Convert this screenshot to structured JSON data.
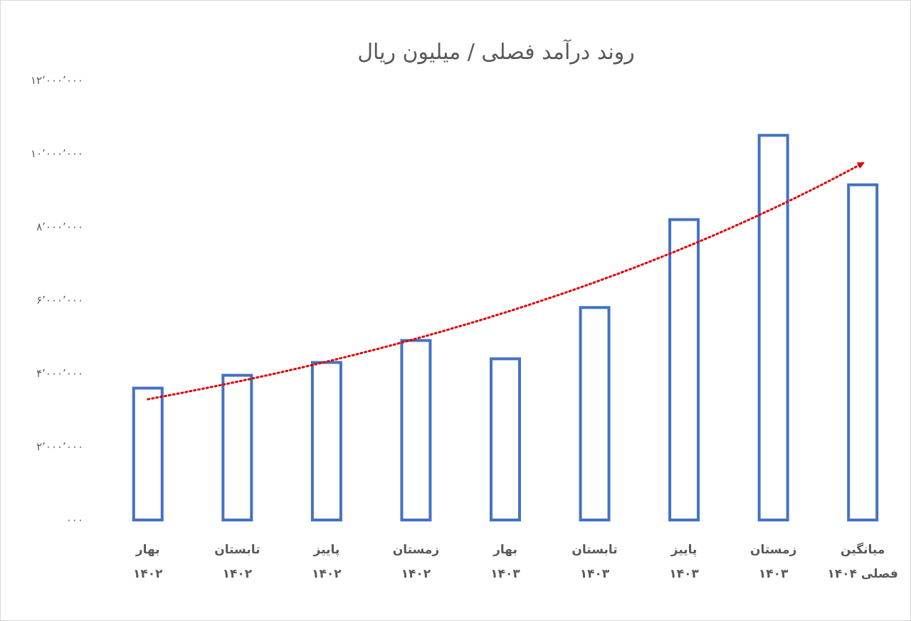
{
  "chart_data": {
    "type": "bar",
    "title": "روند درآمد فصلی / میلیون ریال",
    "ylim": [
      0,
      12000000
    ],
    "y_ticks": [
      0,
      2000000,
      4000000,
      6000000,
      8000000,
      10000000,
      12000000
    ],
    "y_tick_labels": [
      "۰۰۰",
      "۲٬۰۰۰٬۰۰۰",
      "۴٬۰۰۰٬۰۰۰",
      "۶٬۰۰۰٬۰۰۰",
      "۸٬۰۰۰٬۰۰۰",
      "۱۰٬۰۰۰٬۰۰۰",
      "۱۲٬۰۰۰٬۰۰۰"
    ],
    "categories": [
      [
        "بهار",
        "۱۴۰۲"
      ],
      [
        "تابستان",
        "۱۴۰۲"
      ],
      [
        "پاییز",
        "۱۴۰۲"
      ],
      [
        "زمستان",
        "۱۴۰۲"
      ],
      [
        "بهار",
        "۱۴۰۳"
      ],
      [
        "تابستان",
        "۱۴۰۳"
      ],
      [
        "پاییز",
        "۱۴۰۳"
      ],
      [
        "زمستان",
        "۱۴۰۳"
      ],
      [
        "میانگین",
        "فصلی ۱۴۰۴"
      ]
    ],
    "values": [
      3600000,
      3950000,
      4300000,
      4900000,
      4400000,
      5800000,
      8200000,
      10500000,
      9150000
    ],
    "trendline": {
      "type": "exponential",
      "style": "dotted",
      "arrow": true,
      "color": "#e00000"
    },
    "grid": false,
    "legend": "none",
    "colors": {
      "bar_stroke": "#4472c4",
      "bar_fill": "#ffffff",
      "text": "#595959",
      "trend": "#e00000"
    }
  }
}
